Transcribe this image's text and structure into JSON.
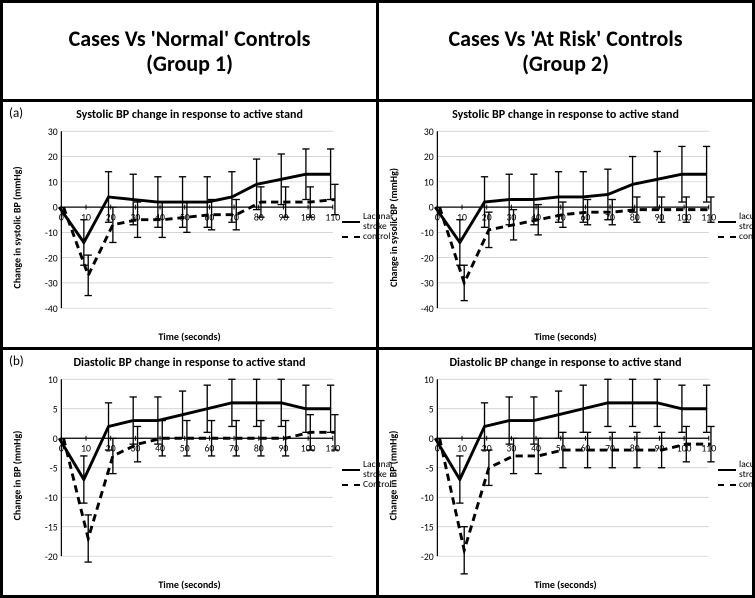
{
  "headers": {
    "left": "Cases Vs 'Normal' Controls\n(Group 1)",
    "right": "Cases Vs 'At Risk' Controls\n(Group 2)"
  },
  "row_labels": {
    "a": "(a)",
    "b": "(b)"
  },
  "common": {
    "xlabel": "Time (seconds)",
    "title_fontsize": 12,
    "label_fontsize": 10,
    "tick_fontsize": 8,
    "line_color": "#000000",
    "line_width_solid": 2.4,
    "line_width_dash": 2.4,
    "dash_pattern": "6,4",
    "errorbar_width": 1.1,
    "errorbar_cap": 3,
    "background_color": "#ffffff",
    "grid_color": "#c8c8c8",
    "axis_color": "#000000",
    "legend_items": [
      {
        "label_key": "legend.case",
        "style": "solid"
      },
      {
        "label_key": "legend.control",
        "style": "dashed"
      }
    ]
  },
  "charts": {
    "a_left": {
      "type": "line-errorbar",
      "title": "Systolic BP change in response to active stand",
      "ylabel": "Change in systolic BP (mmHg)",
      "xlim": [
        0,
        110
      ],
      "xtick_step": 10,
      "ylim": [
        -40,
        30
      ],
      "ytick_step": 10,
      "x": [
        0,
        10,
        20,
        30,
        40,
        50,
        60,
        70,
        80,
        90,
        100,
        110
      ],
      "legend": {
        "case": "Lacunar stroke",
        "control": "control"
      },
      "series": {
        "case": {
          "y": [
            0,
            -14,
            4,
            3,
            2,
            2,
            2,
            4,
            9,
            11,
            13,
            13
          ],
          "err": [
            0,
            9,
            10,
            10,
            10,
            10,
            10,
            10,
            10,
            10,
            10,
            10
          ]
        },
        "control": {
          "y": [
            0,
            -27,
            -7,
            -5,
            -5,
            -4,
            -3,
            -3,
            2,
            2,
            2,
            3
          ],
          "err": [
            0,
            8,
            7,
            7,
            7,
            6,
            6,
            6,
            6,
            6,
            6,
            6
          ]
        }
      }
    },
    "a_right": {
      "type": "line-errorbar",
      "title": "Systolic BP change in response to active stand",
      "ylabel": "Change in sysolic BP (mmHg)",
      "xlim": [
        0,
        110
      ],
      "xtick_step": 10,
      "ylim": [
        -40,
        30
      ],
      "ytick_step": 10,
      "x": [
        0,
        10,
        20,
        30,
        40,
        50,
        60,
        70,
        80,
        90,
        100,
        110
      ],
      "legend": {
        "case": "lacunar stroke",
        "control": "control"
      },
      "series": {
        "case": {
          "y": [
            0,
            -14,
            2,
            3,
            3,
            4,
            4,
            5,
            9,
            11,
            13,
            13
          ],
          "err": [
            0,
            9,
            10,
            10,
            10,
            10,
            10,
            10,
            11,
            11,
            11,
            11
          ]
        },
        "control": {
          "y": [
            0,
            -30,
            -9,
            -7,
            -5,
            -3,
            -2,
            -2,
            -1,
            -1,
            -1,
            -1
          ],
          "err": [
            0,
            7,
            7,
            6,
            6,
            5,
            5,
            5,
            5,
            5,
            5,
            5
          ]
        }
      }
    },
    "b_left": {
      "type": "line-errorbar",
      "title": "Diastolic BP change in response to active stand",
      "ylabel": "Change in BP (mmHg)",
      "xlim": [
        0,
        110
      ],
      "xtick_step": 10,
      "ylim": [
        -20,
        10
      ],
      "ytick_step": 5,
      "x": [
        0,
        10,
        20,
        30,
        40,
        50,
        60,
        70,
        80,
        90,
        100,
        110
      ],
      "legend": {
        "case": "Lacunar stroke",
        "control": "Control"
      },
      "series": {
        "case": {
          "y": [
            0,
            -7,
            2,
            3,
            3,
            4,
            5,
            6,
            6,
            6,
            5,
            5
          ],
          "err": [
            0,
            4,
            4,
            4,
            4,
            4,
            4,
            4,
            4,
            4,
            4,
            4
          ]
        },
        "control": {
          "y": [
            0,
            -17,
            -3,
            -1,
            0,
            0,
            0,
            0,
            0,
            0,
            1,
            1
          ],
          "err": [
            0,
            4,
            3,
            3,
            3,
            3,
            3,
            3,
            3,
            3,
            3,
            3
          ]
        }
      }
    },
    "b_right": {
      "type": "line-errorbar",
      "title": "Diastolic BP change in response to active stand",
      "ylabel": "Change in BP (mmHg)",
      "xlim": [
        0,
        110
      ],
      "xtick_step": 10,
      "ylim": [
        -20,
        10
      ],
      "ytick_step": 5,
      "x": [
        0,
        10,
        20,
        30,
        40,
        50,
        60,
        70,
        80,
        90,
        100,
        110
      ],
      "legend": {
        "case": "lacunar stroke",
        "control": "control"
      },
      "series": {
        "case": {
          "y": [
            0,
            -7,
            2,
            3,
            3,
            4,
            5,
            6,
            6,
            6,
            5,
            5
          ],
          "err": [
            0,
            4,
            4,
            4,
            4,
            4,
            4,
            4,
            4,
            4,
            4,
            4
          ]
        },
        "control": {
          "y": [
            0,
            -19,
            -5,
            -3,
            -3,
            -2,
            -2,
            -2,
            -2,
            -2,
            -1,
            -1
          ],
          "err": [
            0,
            4,
            3,
            3,
            3,
            3,
            3,
            3,
            3,
            3,
            3,
            3
          ]
        }
      }
    }
  }
}
